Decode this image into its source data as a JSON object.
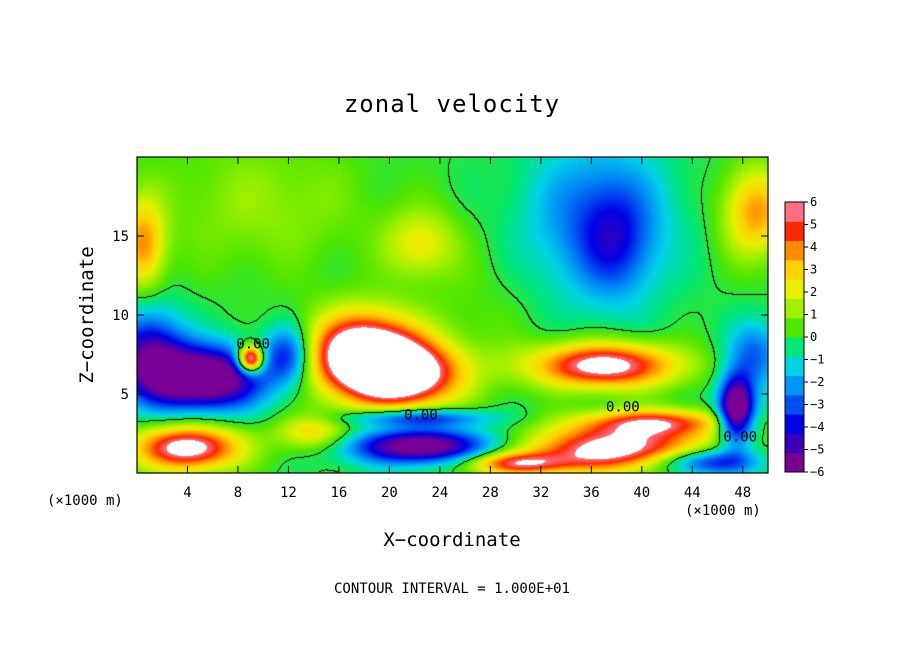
{
  "chart_data": {
    "type": "heatmap",
    "title": "zonal velocity",
    "xlabel": "X−coordinate",
    "ylabel": "Z−coordinate",
    "x_unit_left": "(×1000 m)",
    "x_unit_right": "(×1000 m)",
    "xlim": [
      0,
      50
    ],
    "ylim": [
      0,
      20
    ],
    "x_ticks": [
      4,
      8,
      12,
      16,
      20,
      24,
      28,
      32,
      36,
      40,
      44,
      48
    ],
    "x_tick_labels": [
      "4",
      "8",
      "12",
      "16",
      "20",
      "24",
      "28",
      "32",
      "36",
      "40",
      "44",
      "48"
    ],
    "y_ticks": [
      5,
      10,
      15
    ],
    "y_tick_labels": [
      "5",
      "10",
      "15"
    ],
    "colorbar": {
      "min": -6,
      "max": 6,
      "ticks": [
        6,
        5,
        4,
        3,
        2,
        1,
        0,
        -1,
        -2,
        -3,
        -4,
        -5,
        -6
      ],
      "tick_labels": [
        "6",
        "5",
        "4",
        "3",
        "2",
        "1",
        "0",
        "−1",
        "−2",
        "−3",
        "−4",
        "−5",
        "−6"
      ],
      "colors": [
        "#7a0090",
        "#3a00b8",
        "#0000e6",
        "#0050f0",
        "#0096f5",
        "#00d2e6",
        "#00e678",
        "#50e600",
        "#a0f000",
        "#e6f000",
        "#ffd200",
        "#ff8c00",
        "#ff2800",
        "#ff6e82"
      ]
    },
    "contour_labels": [
      {
        "text": "0.00",
        "x": 9.2,
        "y": 8.2
      },
      {
        "text": "0.00",
        "x": 22.5,
        "y": 3.7
      },
      {
        "text": "0.00",
        "x": 38.5,
        "y": 4.2
      },
      {
        "text": "0.00",
        "x": 47.8,
        "y": 2.3
      }
    ],
    "field_sources": [
      {
        "x": 18.0,
        "y": 7.5,
        "sx": 3.0,
        "sy": 1.8,
        "a": 9
      },
      {
        "x": 21.5,
        "y": 6.2,
        "sx": 3.0,
        "sy": 1.4,
        "a": 7
      },
      {
        "x": 37.0,
        "y": 6.8,
        "sx": 4.0,
        "sy": 1.0,
        "a": 7
      },
      {
        "x": 36.5,
        "y": 16.0,
        "sx": 4.0,
        "sy": 3.5,
        "a": -3
      },
      {
        "x": 38.0,
        "y": 14.5,
        "sx": 2.0,
        "sy": 2.5,
        "a": -2
      },
      {
        "x": 5.5,
        "y": 6.0,
        "sx": 3.2,
        "sy": 1.4,
        "a": -8
      },
      {
        "x": 1.0,
        "y": 7.5,
        "sx": 2.0,
        "sy": 2.0,
        "a": -5
      },
      {
        "x": 12.0,
        "y": 7.5,
        "sx": 1.3,
        "sy": 1.3,
        "a": -4
      },
      {
        "x": 22.5,
        "y": 1.7,
        "sx": 4.0,
        "sy": 0.8,
        "a": -7
      },
      {
        "x": 22.0,
        "y": 3.5,
        "sx": 4.0,
        "sy": 0.4,
        "a": -4
      },
      {
        "x": 38.0,
        "y": 1.5,
        "sx": 5.0,
        "sy": 1.0,
        "a": 7
      },
      {
        "x": 41.0,
        "y": 3.2,
        "sx": 4.0,
        "sy": 0.6,
        "a": 5
      },
      {
        "x": 4.0,
        "y": 1.6,
        "sx": 3.0,
        "sy": 1.0,
        "a": 7
      },
      {
        "x": 9.0,
        "y": 7.2,
        "sx": 0.7,
        "sy": 0.6,
        "a": 9
      },
      {
        "x": 22.5,
        "y": 14.5,
        "sx": 2.0,
        "sy": 1.5,
        "a": 2.5
      },
      {
        "x": 0.5,
        "y": 14.5,
        "sx": 1.2,
        "sy": 2.0,
        "a": 4
      },
      {
        "x": 49.0,
        "y": 16.5,
        "sx": 1.8,
        "sy": 2.0,
        "a": 4
      },
      {
        "x": 47.5,
        "y": 4.0,
        "sx": 1.0,
        "sy": 1.5,
        "a": -8
      },
      {
        "x": 49.0,
        "y": 7.5,
        "sx": 1.5,
        "sy": 1.5,
        "a": -3
      },
      {
        "x": 45.0,
        "y": 0.7,
        "sx": 3.0,
        "sy": 0.6,
        "a": -5
      },
      {
        "x": 30.0,
        "y": 0.6,
        "sx": 3.0,
        "sy": 0.5,
        "a": 5
      },
      {
        "x": 14.0,
        "y": 2.6,
        "sx": 2.0,
        "sy": 0.8,
        "a": 3
      },
      {
        "x": 10.0,
        "y": 17.0,
        "sx": 6.0,
        "sy": 3.0,
        "a": 1.2
      },
      {
        "x": 27.0,
        "y": 10.0,
        "sx": 3.0,
        "sy": 3.0,
        "a": 0.5
      }
    ],
    "contour_interval_text": "CONTOUR INTERVAL = 1.000E+01"
  }
}
